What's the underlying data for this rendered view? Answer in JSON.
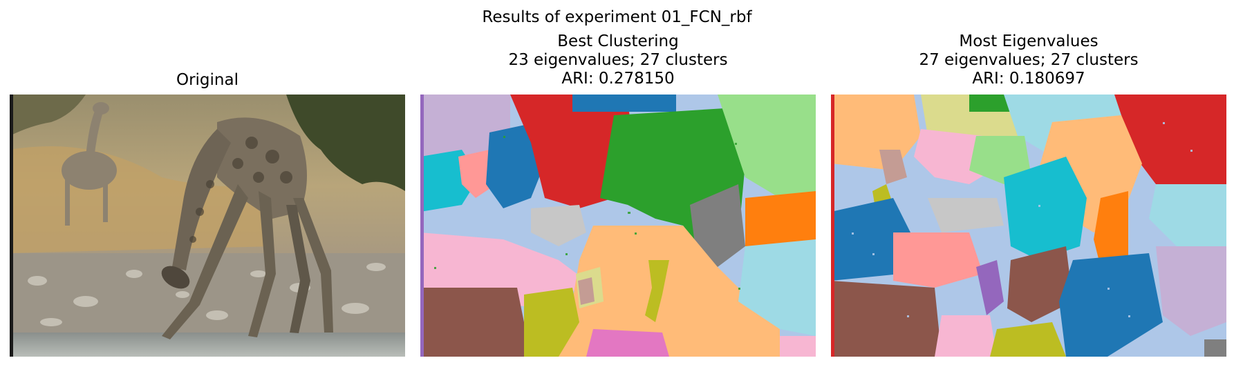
{
  "figure": {
    "suptitle": "Results of experiment 01_FCN_rbf"
  },
  "panels": [
    {
      "title_lines": [
        "Original"
      ],
      "image_description_icon": "giraffe-drinking-photo"
    },
    {
      "title_lines": [
        "Best Clustering",
        "23 eigenvalues; 27 clusters",
        "ARI: 0.278150"
      ]
    },
    {
      "title_lines": [
        "Most Eigenvalues",
        "27 eigenvalues; 27 clusters",
        "ARI: 0.180697"
      ]
    }
  ],
  "colors": {
    "tab_blue": "#1f77b4",
    "tab_lightblue": "#aec7e8",
    "tab_orange": "#ff7f0e",
    "tab_lightorange": "#ffbb78",
    "tab_green": "#2ca02c",
    "tab_lightgreen": "#98df8a",
    "tab_red": "#d62728",
    "tab_pink": "#ff9896",
    "tab_purple": "#9467bd",
    "tab_lavender": "#c5b0d5",
    "tab_brown": "#8c564b",
    "tab_tan": "#c49c94",
    "tab_magenta": "#e377c2",
    "tab_lightpink": "#f7b6d2",
    "tab_gray": "#7f7f7f",
    "tab_silver": "#c7c7c7",
    "tab_olive": "#bcbd22",
    "tab_khaki": "#dbdb8d",
    "tab_cyan": "#17becf",
    "tab_lightcyan": "#9edae5"
  }
}
